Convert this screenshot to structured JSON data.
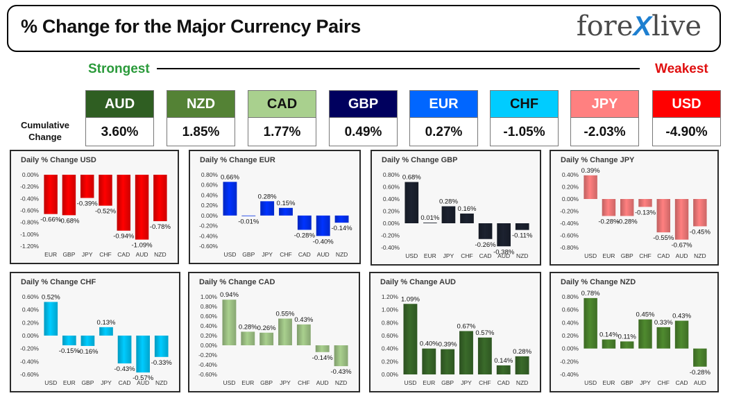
{
  "header": {
    "title": "% Change for the Major Currency Pairs",
    "logo_left": "fore",
    "logo_x": "X",
    "logo_right": "live"
  },
  "scale": {
    "strongest": "Strongest",
    "weakest": "Weakest"
  },
  "cumulative": {
    "label_line1": "Cumulative",
    "label_line2": "Change",
    "currencies": [
      {
        "name": "AUD",
        "value": "3.60%",
        "color": "#2f5e22",
        "text_color": "#ffffff"
      },
      {
        "name": "NZD",
        "value": "1.85%",
        "color": "#548235",
        "text_color": "#ffffff"
      },
      {
        "name": "CAD",
        "value": "1.77%",
        "color": "#a9d08e",
        "text_color": "#111111"
      },
      {
        "name": "GBP",
        "value": "0.49%",
        "color": "#00005e",
        "text_color": "#ffffff"
      },
      {
        "name": "EUR",
        "value": "0.27%",
        "color": "#0066ff",
        "text_color": "#ffffff"
      },
      {
        "name": "CHF",
        "value": "-1.05%",
        "color": "#00ccff",
        "text_color": "#111111"
      },
      {
        "name": "JPY",
        "value": "-2.03%",
        "color": "#ff8080",
        "text_color": "#ffffff"
      },
      {
        "name": "USD",
        "value": "-4.90%",
        "color": "#ff0000",
        "text_color": "#ffffff"
      }
    ]
  },
  "chart_data": [
    {
      "type": "bar",
      "title": "Daily % Change USD",
      "categories": [
        "EUR",
        "GBP",
        "JPY",
        "CHF",
        "CAD",
        "AUD",
        "NZD"
      ],
      "values": [
        -0.66,
        -0.68,
        -0.39,
        -0.52,
        -0.94,
        -1.09,
        -0.78
      ],
      "labels": [
        "-0.66%",
        "-0.68%",
        "-0.39%",
        "-0.52%",
        "-0.94%",
        "-1.09%",
        "-0.78%"
      ],
      "yticks": [
        "0.00%",
        "-0.20%",
        "-0.40%",
        "-0.60%",
        "-0.80%",
        "-1.00%",
        "-1.20%"
      ],
      "ylim": [
        -1.2,
        0
      ],
      "color": "#ff0000"
    },
    {
      "type": "bar",
      "title": "Daily % Change EUR",
      "categories": [
        "USD",
        "GBP",
        "JPY",
        "CHF",
        "CAD",
        "AUD",
        "NZD"
      ],
      "values": [
        0.66,
        -0.01,
        0.28,
        0.15,
        -0.28,
        -0.4,
        -0.14
      ],
      "labels": [
        "0.66%",
        "-0.01%",
        "0.28%",
        "0.15%",
        "-0.28%",
        "-0.40%",
        "-0.14%"
      ],
      "yticks": [
        "0.80%",
        "0.60%",
        "0.40%",
        "0.20%",
        "0.00%",
        "-0.20%",
        "-0.40%",
        "-0.60%"
      ],
      "ylim": [
        -0.6,
        0.8
      ],
      "color": "#0033ff"
    },
    {
      "type": "bar",
      "title": "Daily % Change GBP",
      "categories": [
        "USD",
        "EUR",
        "JPY",
        "CHF",
        "CAD",
        "AUD",
        "NZD"
      ],
      "values": [
        0.68,
        0.01,
        0.28,
        0.16,
        -0.26,
        -0.38,
        -0.11
      ],
      "labels": [
        "0.68%",
        "0.01%",
        "0.28%",
        "0.16%",
        "-0.26%",
        "-0.38%",
        "-0.11%"
      ],
      "yticks": [
        "0.80%",
        "0.60%",
        "0.40%",
        "0.20%",
        "0.00%",
        "-0.20%",
        "-0.40%"
      ],
      "ylim": [
        -0.4,
        0.8
      ],
      "color": "#1c2230"
    },
    {
      "type": "bar",
      "title": "Daily % Change JPY",
      "categories": [
        "USD",
        "EUR",
        "GBP",
        "CHF",
        "CAD",
        "AUD",
        "NZD"
      ],
      "values": [
        0.39,
        -0.28,
        -0.28,
        -0.13,
        -0.55,
        -0.67,
        -0.45
      ],
      "labels": [
        "0.39%",
        "-0.28%",
        "-0.28%",
        "-0.13%",
        "-0.55%",
        "-0.67%",
        "-0.45%"
      ],
      "yticks": [
        "0.40%",
        "0.20%",
        "0.00%",
        "-0.20%",
        "-0.40%",
        "-0.60%",
        "-0.80%"
      ],
      "ylim": [
        -0.8,
        0.4
      ],
      "color": "#ff8080"
    },
    {
      "type": "bar",
      "title": "Daily % Change CHF",
      "categories": [
        "USD",
        "EUR",
        "GBP",
        "JPY",
        "CAD",
        "AUD",
        "NZD"
      ],
      "values": [
        0.52,
        -0.15,
        -0.16,
        0.13,
        -0.43,
        -0.57,
        -0.33
      ],
      "labels": [
        "0.52%",
        "-0.15%",
        "-0.16%",
        "0.13%",
        "-0.43%",
        "-0.57%",
        "-0.33%"
      ],
      "yticks": [
        "0.60%",
        "0.40%",
        "0.20%",
        "0.00%",
        "-0.20%",
        "-0.40%",
        "-0.60%"
      ],
      "ylim": [
        -0.6,
        0.6
      ],
      "color": "#00ccff"
    },
    {
      "type": "bar",
      "title": "Daily % Change CAD",
      "categories": [
        "USD",
        "EUR",
        "GBP",
        "JPY",
        "CHF",
        "AUD",
        "NZD"
      ],
      "values": [
        0.94,
        0.28,
        0.26,
        0.55,
        0.43,
        -0.14,
        -0.43
      ],
      "labels": [
        "0.94%",
        "0.28%",
        "0.26%",
        "0.55%",
        "0.43%",
        "-0.14%",
        "-0.43%"
      ],
      "yticks": [
        "1.00%",
        "0.80%",
        "0.60%",
        "0.40%",
        "0.20%",
        "0.00%",
        "-0.20%",
        "-0.40%",
        "-0.60%"
      ],
      "ylim": [
        -0.6,
        1.0
      ],
      "color": "#a9d08e"
    },
    {
      "type": "bar",
      "title": "Daily % Change AUD",
      "categories": [
        "USD",
        "EUR",
        "GBP",
        "JPY",
        "CHF",
        "CAD",
        "NZD"
      ],
      "values": [
        1.09,
        0.4,
        0.39,
        0.67,
        0.57,
        0.14,
        0.28
      ],
      "labels": [
        "1.09%",
        "0.40%",
        "0.39%",
        "0.67%",
        "0.57%",
        "0.14%",
        "0.28%"
      ],
      "yticks": [
        "1.20%",
        "1.00%",
        "0.80%",
        "0.60%",
        "0.40%",
        "0.20%",
        "0.00%"
      ],
      "ylim": [
        0,
        1.2
      ],
      "color": "#3a6b2a"
    },
    {
      "type": "bar",
      "title": "Daily % Change NZD",
      "categories": [
        "USD",
        "EUR",
        "GBP",
        "JPY",
        "CHF",
        "CAD",
        "AUD"
      ],
      "values": [
        0.78,
        0.14,
        0.11,
        0.45,
        0.33,
        0.43,
        -0.28
      ],
      "labels": [
        "0.78%",
        "0.14%",
        "0.11%",
        "0.45%",
        "0.33%",
        "0.43%",
        "-0.28%"
      ],
      "yticks": [
        "0.80%",
        "0.60%",
        "0.40%",
        "0.20%",
        "0.00%",
        "-0.20%",
        "-0.40%"
      ],
      "ylim": [
        -0.4,
        0.8
      ],
      "color": "#4f8a2f"
    }
  ]
}
